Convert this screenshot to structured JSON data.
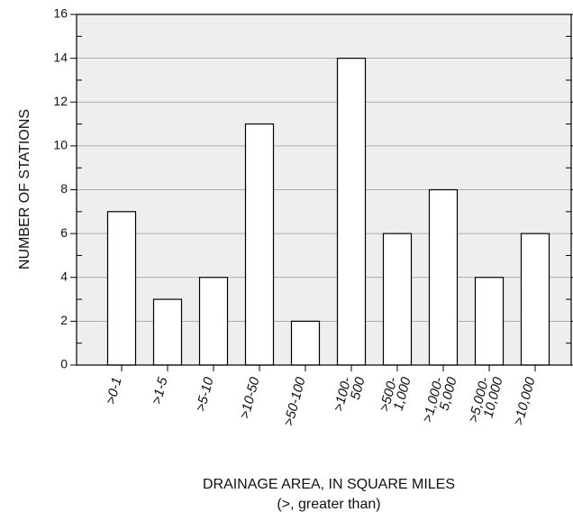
{
  "chart_data": {
    "type": "bar",
    "y_label": "NUMBER OF STATIONS",
    "x_label": "DRAINAGE AREA, IN SQUARE MILES",
    "x_label_note": "(>, greater than)",
    "categories": [
      [
        ">0-1"
      ],
      [
        ">1-5"
      ],
      [
        ">5-10"
      ],
      [
        ">10-50"
      ],
      [
        ">50-100"
      ],
      [
        ">100-",
        "500"
      ],
      [
        ">500-",
        "1,000"
      ],
      [
        ">1,000-",
        "5,000"
      ],
      [
        ">5,000-",
        "10,000"
      ],
      [
        ">10,000"
      ]
    ],
    "values": [
      7,
      3,
      4,
      11,
      2,
      14,
      6,
      8,
      4,
      6
    ],
    "color": "#ffffff",
    "edge_color": "#000000",
    "background": "#eeeeee",
    "ylim": [
      0,
      16
    ],
    "yticks": [
      0,
      2,
      4,
      6,
      8,
      10,
      12,
      14,
      16
    ],
    "grid": true
  }
}
